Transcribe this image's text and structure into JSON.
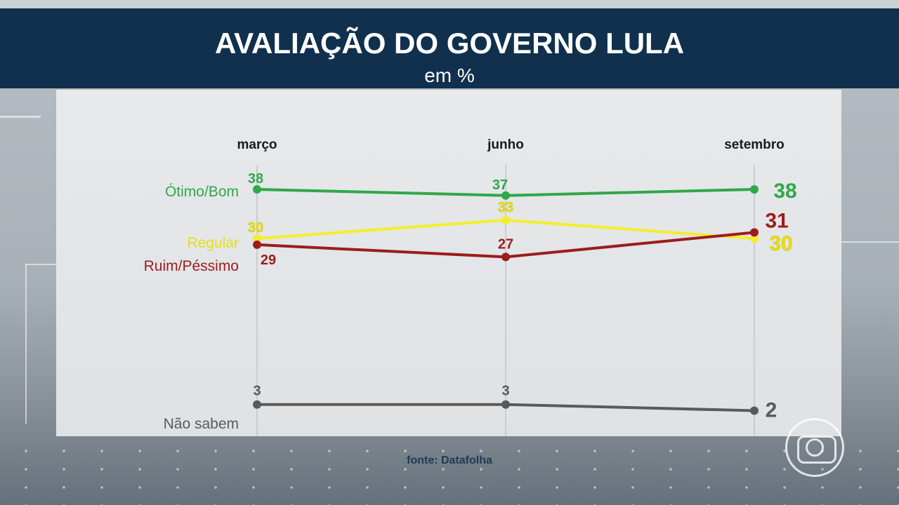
{
  "header": {
    "title": "AVALIAÇÃO DO GOVERNO LULA",
    "subtitle": "em %"
  },
  "source_text": "fonte: Datafolha",
  "chart_data": {
    "type": "line",
    "title": "AVALIAÇÃO DO GOVERNO LULA",
    "subtitle": "em %",
    "categories": [
      "março",
      "junho",
      "setembro"
    ],
    "ylim": [
      0,
      40
    ],
    "grid": "vertical lines at each category",
    "legend": "series labels on left of lines",
    "series": [
      {
        "name": "Ótimo/Bom",
        "values": [
          38,
          37,
          38
        ],
        "color": "#2fa84a",
        "label_color": "#2fa84a"
      },
      {
        "name": "Regular",
        "values": [
          30,
          33,
          30
        ],
        "color": "#f4ee2c",
        "label_color": "#e8de12"
      },
      {
        "name": "Ruim/Péssimo",
        "values": [
          29,
          27,
          31
        ],
        "color": "#9c1c1c",
        "label_color": "#9c1c1c"
      },
      {
        "name": "Não sabem",
        "values": [
          3,
          3,
          2
        ],
        "color": "#5a5a5a",
        "label_color": "#5a5a5a"
      }
    ]
  }
}
